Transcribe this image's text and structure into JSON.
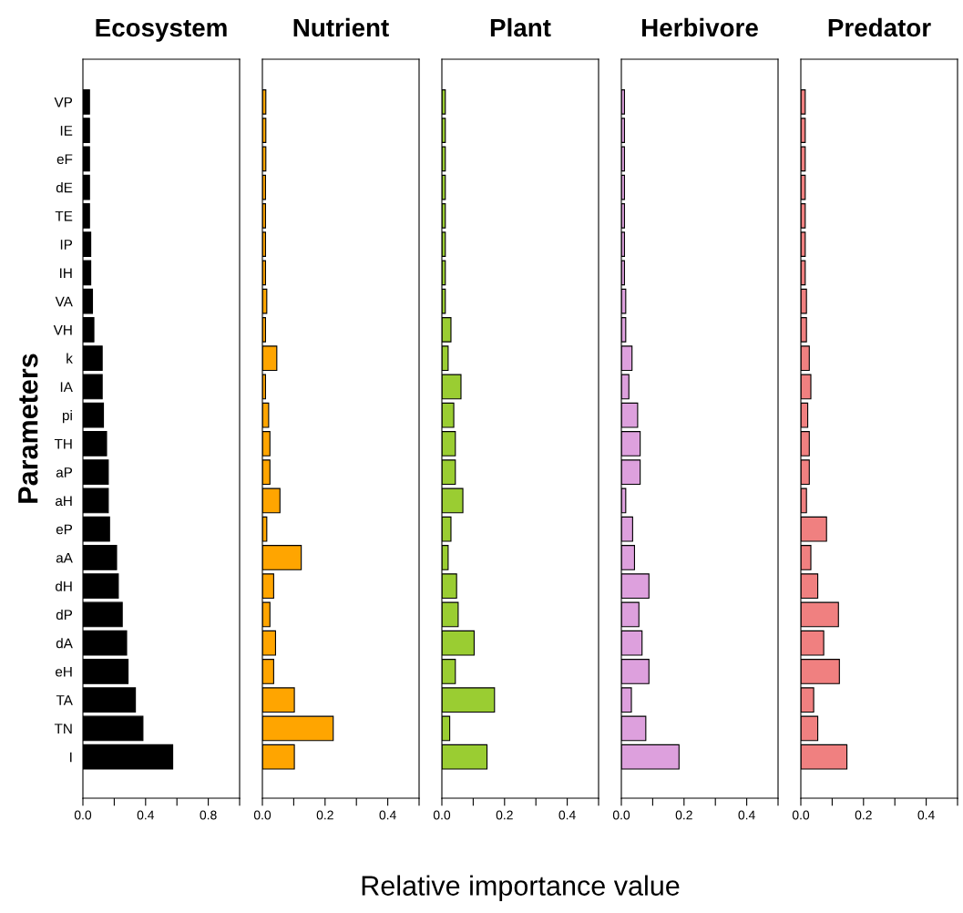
{
  "chart_data": [
    {
      "type": "bar",
      "orientation": "horizontal",
      "title": "Ecosystem",
      "ylabel": "Parameters",
      "categories": [
        "VP",
        "IE",
        "eF",
        "dE",
        "TE",
        "IP",
        "IH",
        "VA",
        "VH",
        "k",
        "IA",
        "pi",
        "TH",
        "aP",
        "aH",
        "eP",
        "aA",
        "dH",
        "dP",
        "dA",
        "eH",
        "TA",
        "TN",
        "I"
      ],
      "color": "#000000",
      "values": [
        0.042,
        0.042,
        0.042,
        0.042,
        0.042,
        0.05,
        0.05,
        0.061,
        0.07,
        0.123,
        0.123,
        0.131,
        0.151,
        0.162,
        0.162,
        0.17,
        0.215,
        0.226,
        0.251,
        0.279,
        0.288,
        0.335,
        0.383,
        0.573
      ],
      "xlim": [
        0,
        1.0
      ],
      "xticks": [
        {
          "value": 0,
          "label": "0.0"
        },
        {
          "value": 0.2,
          "label": null
        },
        {
          "value": 0.4,
          "label": "0.4"
        },
        {
          "value": 0.6,
          "label": null
        },
        {
          "value": 0.8,
          "label": "0.8"
        },
        {
          "value": 1.0,
          "label": null
        }
      ],
      "grid": false
    },
    {
      "type": "bar",
      "orientation": "horizontal",
      "title": "Nutrient",
      "categories": [
        null,
        null,
        null,
        null,
        null,
        null,
        null,
        null,
        null,
        null,
        null,
        null,
        null,
        null,
        null,
        null,
        null,
        null,
        null,
        null,
        null,
        null,
        null,
        null
      ],
      "color": "#ffa500",
      "values": [
        0.011,
        0.011,
        0.011,
        0.01,
        0.01,
        0.01,
        0.01,
        0.014,
        0.01,
        0.046,
        0.01,
        0.02,
        0.024,
        0.024,
        0.056,
        0.014,
        0.124,
        0.036,
        0.024,
        0.042,
        0.036,
        0.102,
        0.226,
        0.102
      ],
      "xlim": [
        0,
        0.5
      ],
      "xticks": [
        {
          "value": 0,
          "label": "0.0"
        },
        {
          "value": 0.1,
          "label": null
        },
        {
          "value": 0.2,
          "label": "0.2"
        },
        {
          "value": 0.3,
          "label": null
        },
        {
          "value": 0.4,
          "label": "0.4"
        },
        {
          "value": 0.5,
          "label": null
        }
      ],
      "tick_labels": "x",
      "grid": false
    },
    {
      "type": "bar",
      "orientation": "horizontal",
      "title": "Plant",
      "xlabel": "Relative importance value",
      "categories": [
        null,
        null,
        null,
        null,
        null,
        null,
        null,
        null,
        null,
        null,
        null,
        null,
        null,
        null,
        null,
        null,
        null,
        null,
        null,
        null,
        null,
        null,
        null,
        null
      ],
      "color": "#9acd32",
      "values": [
        0.011,
        0.011,
        0.011,
        0.011,
        0.011,
        0.011,
        0.011,
        0.011,
        0.029,
        0.02,
        0.061,
        0.038,
        0.043,
        0.043,
        0.067,
        0.029,
        0.02,
        0.047,
        0.052,
        0.103,
        0.043,
        0.168,
        0.025,
        0.144
      ],
      "xlim": [
        0,
        0.5
      ],
      "xticks": [
        {
          "value": 0,
          "label": "0.0"
        },
        {
          "value": 0.1,
          "label": null
        },
        {
          "value": 0.2,
          "label": "0.2"
        },
        {
          "value": 0.3,
          "label": null
        },
        {
          "value": 0.4,
          "label": "0.4"
        },
        {
          "value": 0.5,
          "label": null
        }
      ],
      "tick_labels": "x",
      "grid": false
    },
    {
      "type": "bar",
      "orientation": "horizontal",
      "title": "Herbivore",
      "categories": [
        null,
        null,
        null,
        null,
        null,
        null,
        null,
        null,
        null,
        null,
        null,
        null,
        null,
        null,
        null,
        null,
        null,
        null,
        null,
        null,
        null,
        null,
        null,
        null
      ],
      "color": "#dda0dd",
      "values": [
        0.01,
        0.01,
        0.01,
        0.01,
        0.01,
        0.01,
        0.01,
        0.014,
        0.014,
        0.034,
        0.024,
        0.052,
        0.06,
        0.06,
        0.014,
        0.036,
        0.042,
        0.088,
        0.056,
        0.066,
        0.088,
        0.032,
        0.078,
        0.184
      ],
      "xlim": [
        0,
        0.5
      ],
      "xticks": [
        {
          "value": 0,
          "label": "0.0"
        },
        {
          "value": 0.1,
          "label": null
        },
        {
          "value": 0.2,
          "label": "0.2"
        },
        {
          "value": 0.3,
          "label": null
        },
        {
          "value": 0.4,
          "label": "0.4"
        },
        {
          "value": 0.5,
          "label": null
        }
      ],
      "tick_labels": "x",
      "grid": false
    },
    {
      "type": "bar",
      "orientation": "horizontal",
      "title": "Predator",
      "categories": [
        null,
        null,
        null,
        null,
        null,
        null,
        null,
        null,
        null,
        null,
        null,
        null,
        null,
        null,
        null,
        null,
        null,
        null,
        null,
        null,
        null,
        null,
        null,
        null
      ],
      "color": "#f08080",
      "values": [
        0.014,
        0.014,
        0.014,
        0.014,
        0.014,
        0.014,
        0.014,
        0.018,
        0.018,
        0.027,
        0.032,
        0.022,
        0.027,
        0.027,
        0.018,
        0.082,
        0.032,
        0.054,
        0.12,
        0.073,
        0.123,
        0.041,
        0.054,
        0.147
      ],
      "xlim": [
        0,
        0.5
      ],
      "xticks": [
        {
          "value": 0,
          "label": "0.0"
        },
        {
          "value": 0.1,
          "label": null
        },
        {
          "value": 0.2,
          "label": "0.2"
        },
        {
          "value": 0.3,
          "label": null
        },
        {
          "value": 0.4,
          "label": "0.4"
        },
        {
          "value": 0.5,
          "label": null
        }
      ],
      "tick_labels": "x",
      "grid": false
    }
  ]
}
